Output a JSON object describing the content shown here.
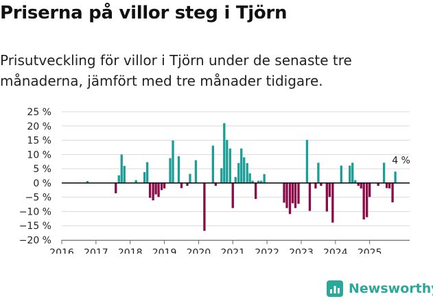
{
  "title": "Priserna på villor steg i Tjörn",
  "subtitle": "Prisutveckling för villor i Tjörn under de senaste tre månaderna, jämfört med tre månader tidigare.",
  "brand": {
    "name": "Newsworthy",
    "logo_icon": "bar-chart-logo-icon"
  },
  "colors": {
    "positive": "#1a9e96",
    "negative": "#8c0a48",
    "zero_line": "#000000"
  },
  "chart_data": {
    "type": "bar",
    "title": "Priserna på villor steg i Tjörn",
    "xlabel": "",
    "ylabel": "",
    "ylim": [
      -20,
      25
    ],
    "yticks": [
      25,
      20,
      15,
      10,
      5,
      0,
      -5,
      -10,
      -15,
      -20
    ],
    "ytick_labels": [
      "25 %",
      "20 %",
      "15 %",
      "10 %",
      "5 %",
      "0 %",
      "−5 %",
      "−10 %",
      "−15 %",
      "−20 %"
    ],
    "xlim": [
      2016.0,
      2026.17
    ],
    "xticks": [
      2016,
      2017,
      2018,
      2019,
      2020,
      2021,
      2022,
      2023,
      2024,
      2025
    ],
    "xtick_labels": [
      "2016",
      "2017",
      "2018",
      "2019",
      "2020",
      "2021",
      "2022",
      "2023",
      "2024",
      "2025"
    ],
    "annotation": {
      "label": "4 %",
      "x": 2025.92,
      "y": 4
    },
    "series": [
      {
        "name": "Prisutveckling",
        "points": [
          {
            "x": 2016.75,
            "y": 0.7
          },
          {
            "x": 2017.58,
            "y": -3.6
          },
          {
            "x": 2017.67,
            "y": 2.7
          },
          {
            "x": 2017.75,
            "y": 10
          },
          {
            "x": 2017.83,
            "y": 6
          },
          {
            "x": 2018.17,
            "y": 1
          },
          {
            "x": 2018.42,
            "y": 3.8
          },
          {
            "x": 2018.5,
            "y": 7.3
          },
          {
            "x": 2018.58,
            "y": -5.2
          },
          {
            "x": 2018.67,
            "y": -6.1
          },
          {
            "x": 2018.75,
            "y": -4
          },
          {
            "x": 2018.83,
            "y": -4.9
          },
          {
            "x": 2018.92,
            "y": -2.5
          },
          {
            "x": 2019.0,
            "y": -1.9
          },
          {
            "x": 2019.17,
            "y": 8.7
          },
          {
            "x": 2019.25,
            "y": 14.9
          },
          {
            "x": 2019.42,
            "y": 9.4
          },
          {
            "x": 2019.5,
            "y": -1.8
          },
          {
            "x": 2019.67,
            "y": -1
          },
          {
            "x": 2019.75,
            "y": 3.2
          },
          {
            "x": 2019.92,
            "y": 8
          },
          {
            "x": 2020.17,
            "y": -16.8
          },
          {
            "x": 2020.42,
            "y": 13.1
          },
          {
            "x": 2020.5,
            "y": -1
          },
          {
            "x": 2020.67,
            "y": 5.2
          },
          {
            "x": 2020.75,
            "y": 21
          },
          {
            "x": 2020.83,
            "y": 15.1
          },
          {
            "x": 2020.92,
            "y": 12.1
          },
          {
            "x": 2021.0,
            "y": -8.8
          },
          {
            "x": 2021.08,
            "y": 2.1
          },
          {
            "x": 2021.17,
            "y": 7
          },
          {
            "x": 2021.25,
            "y": 12.1
          },
          {
            "x": 2021.33,
            "y": 9
          },
          {
            "x": 2021.42,
            "y": 7
          },
          {
            "x": 2021.5,
            "y": 3.4
          },
          {
            "x": 2021.58,
            "y": 0.8
          },
          {
            "x": 2021.67,
            "y": -5.6
          },
          {
            "x": 2021.75,
            "y": 0.8
          },
          {
            "x": 2021.83,
            "y": 0.8
          },
          {
            "x": 2021.92,
            "y": 3.1
          },
          {
            "x": 2022.5,
            "y": -6.9
          },
          {
            "x": 2022.58,
            "y": -8.8
          },
          {
            "x": 2022.67,
            "y": -10.9
          },
          {
            "x": 2022.75,
            "y": -7.1
          },
          {
            "x": 2022.83,
            "y": -8.8
          },
          {
            "x": 2022.92,
            "y": -7.3
          },
          {
            "x": 2023.17,
            "y": 15.1
          },
          {
            "x": 2023.25,
            "y": -9.8
          },
          {
            "x": 2023.42,
            "y": -1.9
          },
          {
            "x": 2023.5,
            "y": 7.1
          },
          {
            "x": 2023.58,
            "y": -1
          },
          {
            "x": 2023.75,
            "y": -10
          },
          {
            "x": 2023.83,
            "y": -4.9
          },
          {
            "x": 2023.92,
            "y": -13.9
          },
          {
            "x": 2024.17,
            "y": 6.1
          },
          {
            "x": 2024.42,
            "y": 6.1
          },
          {
            "x": 2024.5,
            "y": 7.1
          },
          {
            "x": 2024.58,
            "y": 1
          },
          {
            "x": 2024.67,
            "y": -1
          },
          {
            "x": 2024.75,
            "y": -1.9
          },
          {
            "x": 2024.83,
            "y": -12.8
          },
          {
            "x": 2024.92,
            "y": -12
          },
          {
            "x": 2025.0,
            "y": -4.9
          },
          {
            "x": 2025.25,
            "y": -1
          },
          {
            "x": 2025.42,
            "y": 7.1
          },
          {
            "x": 2025.5,
            "y": -1.8
          },
          {
            "x": 2025.58,
            "y": -1.9
          },
          {
            "x": 2025.67,
            "y": -6.8
          },
          {
            "x": 2025.75,
            "y": 4
          }
        ]
      }
    ]
  }
}
